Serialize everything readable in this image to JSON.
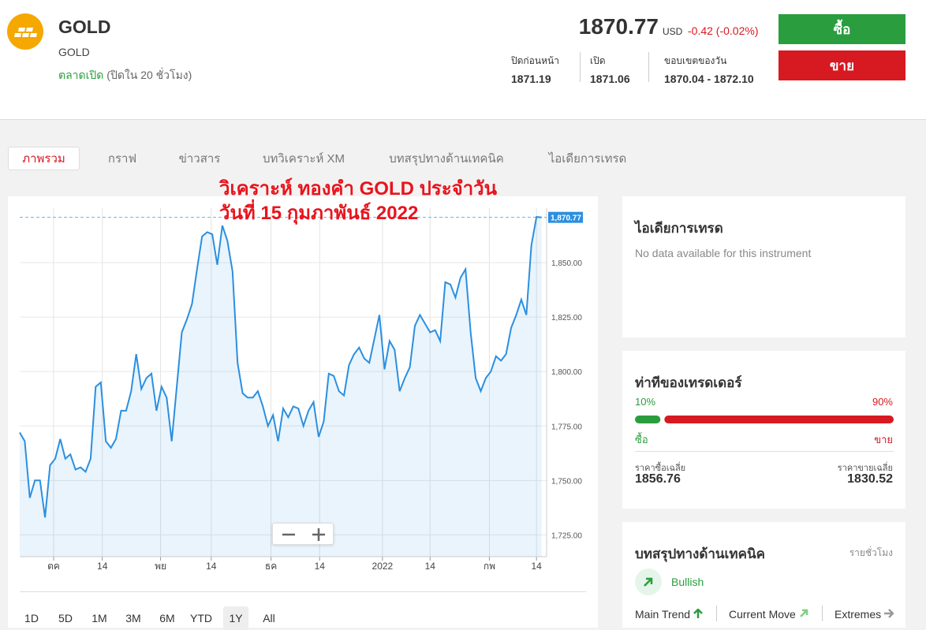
{
  "header": {
    "symbol": "GOLD",
    "name": "GOLD",
    "market_status": "ตลาดเปิด",
    "market_note": "(ปิดใน 20 ชั่วโมง)",
    "price": "1870.77",
    "currency": "USD",
    "change": "-0.42 (-0.02%)",
    "stats": [
      {
        "label": "ปิดก่อนหน้า",
        "value": "1871.19"
      },
      {
        "label": "เปิด",
        "value": "1871.06"
      },
      {
        "label": "ขอบเขตของวัน",
        "value": "1870.04 - 1872.10"
      }
    ],
    "buy": "ซื้อ",
    "sell": "ขาย"
  },
  "tabs": [
    "ภาพรวม",
    "กราฟ",
    "ข่าวสาร",
    "บทวิเคราะห์ XM",
    "บทสรุปทางด้านเทคนิค",
    "ไอเดียการเทรด"
  ],
  "chart_data": {
    "type": "area",
    "title": "วิเคราะห์ ทองคำ GOLD ประจำวัน",
    "subtitle": "วันที่ 15 กุมภาพันธ์ 2022",
    "color": "#2b8fe0",
    "values": [
      1772,
      1768,
      1742,
      1750,
      1750,
      1733,
      1757,
      1760,
      1769,
      1760,
      1762,
      1755,
      1756,
      1754,
      1760,
      1793,
      1795,
      1768,
      1765,
      1769,
      1782,
      1782,
      1791,
      1808,
      1792,
      1797,
      1799,
      1782,
      1793,
      1788,
      1768,
      1793,
      1818,
      1824,
      1831,
      1847,
      1862,
      1864,
      1863,
      1849,
      1867,
      1860,
      1846,
      1804,
      1790,
      1788,
      1788,
      1791,
      1784,
      1775,
      1780,
      1768,
      1783,
      1779,
      1784,
      1783,
      1775,
      1782,
      1786,
      1770,
      1777,
      1799,
      1798,
      1791,
      1789,
      1803,
      1808,
      1811,
      1806,
      1804,
      1815,
      1826,
      1801,
      1814,
      1810,
      1791,
      1797,
      1802,
      1821,
      1826,
      1822,
      1818,
      1819,
      1814,
      1841,
      1840,
      1834,
      1843,
      1847,
      1818,
      1797,
      1791,
      1797,
      1800,
      1807,
      1805,
      1808,
      1820,
      1826,
      1833,
      1826,
      1858,
      1871,
      1870.77
    ],
    "xlim": [
      0,
      104
    ],
    "xticks": [
      {
        "value": 6.7,
        "label": "ตค"
      },
      {
        "value": 16.3,
        "label": "14"
      },
      {
        "value": 27.8,
        "label": "พย"
      },
      {
        "value": 37.8,
        "label": "14"
      },
      {
        "value": 49.6,
        "label": "ธค"
      },
      {
        "value": 59.2,
        "label": "14"
      },
      {
        "value": 71.6,
        "label": "2022"
      },
      {
        "value": 81,
        "label": "14"
      },
      {
        "value": 92.7,
        "label": "กพ"
      },
      {
        "value": 102,
        "label": "14"
      }
    ],
    "ylim": [
      1715,
      1875
    ],
    "yticks": [
      {
        "value": 1725,
        "label": "1,725.00"
      },
      {
        "value": 1750,
        "label": "1,750.00"
      },
      {
        "value": 1775,
        "label": "1,775.00"
      },
      {
        "value": 1800,
        "label": "1,800.00"
      },
      {
        "value": 1825,
        "label": "1,825.00"
      },
      {
        "value": 1850,
        "label": "1,850.00"
      }
    ],
    "price_line": {
      "value": 1870.77,
      "label": "1,870.77"
    },
    "grid": true
  },
  "ranges": [
    "1D",
    "5D",
    "1M",
    "3M",
    "6M",
    "YTD",
    "1Y",
    "All"
  ],
  "ideas": {
    "title": "ไอเดียการเทรด",
    "text": "No data available for this instrument"
  },
  "sentiment": {
    "title": "ท่าทีของเทรดเดอร์",
    "buy": {
      "value": 10,
      "label": "10%"
    },
    "sell": {
      "value": 90,
      "label": "90%"
    },
    "buy_label": "ซื้อ",
    "sell_label": "ขาย",
    "avg_buy_label": "ราคาซื้อเฉลี่ย",
    "avg_buy": "1856.76",
    "avg_sell_label": "ราคาขายเฉลี่ย",
    "avg_sell": "1830.52"
  },
  "technical": {
    "title": "บทสรุปทางด้านเทคนิค",
    "period": "รายชั่วโมง",
    "signal": "Bullish",
    "items": [
      "Main Trend",
      "Current Move",
      "Extremes"
    ]
  }
}
